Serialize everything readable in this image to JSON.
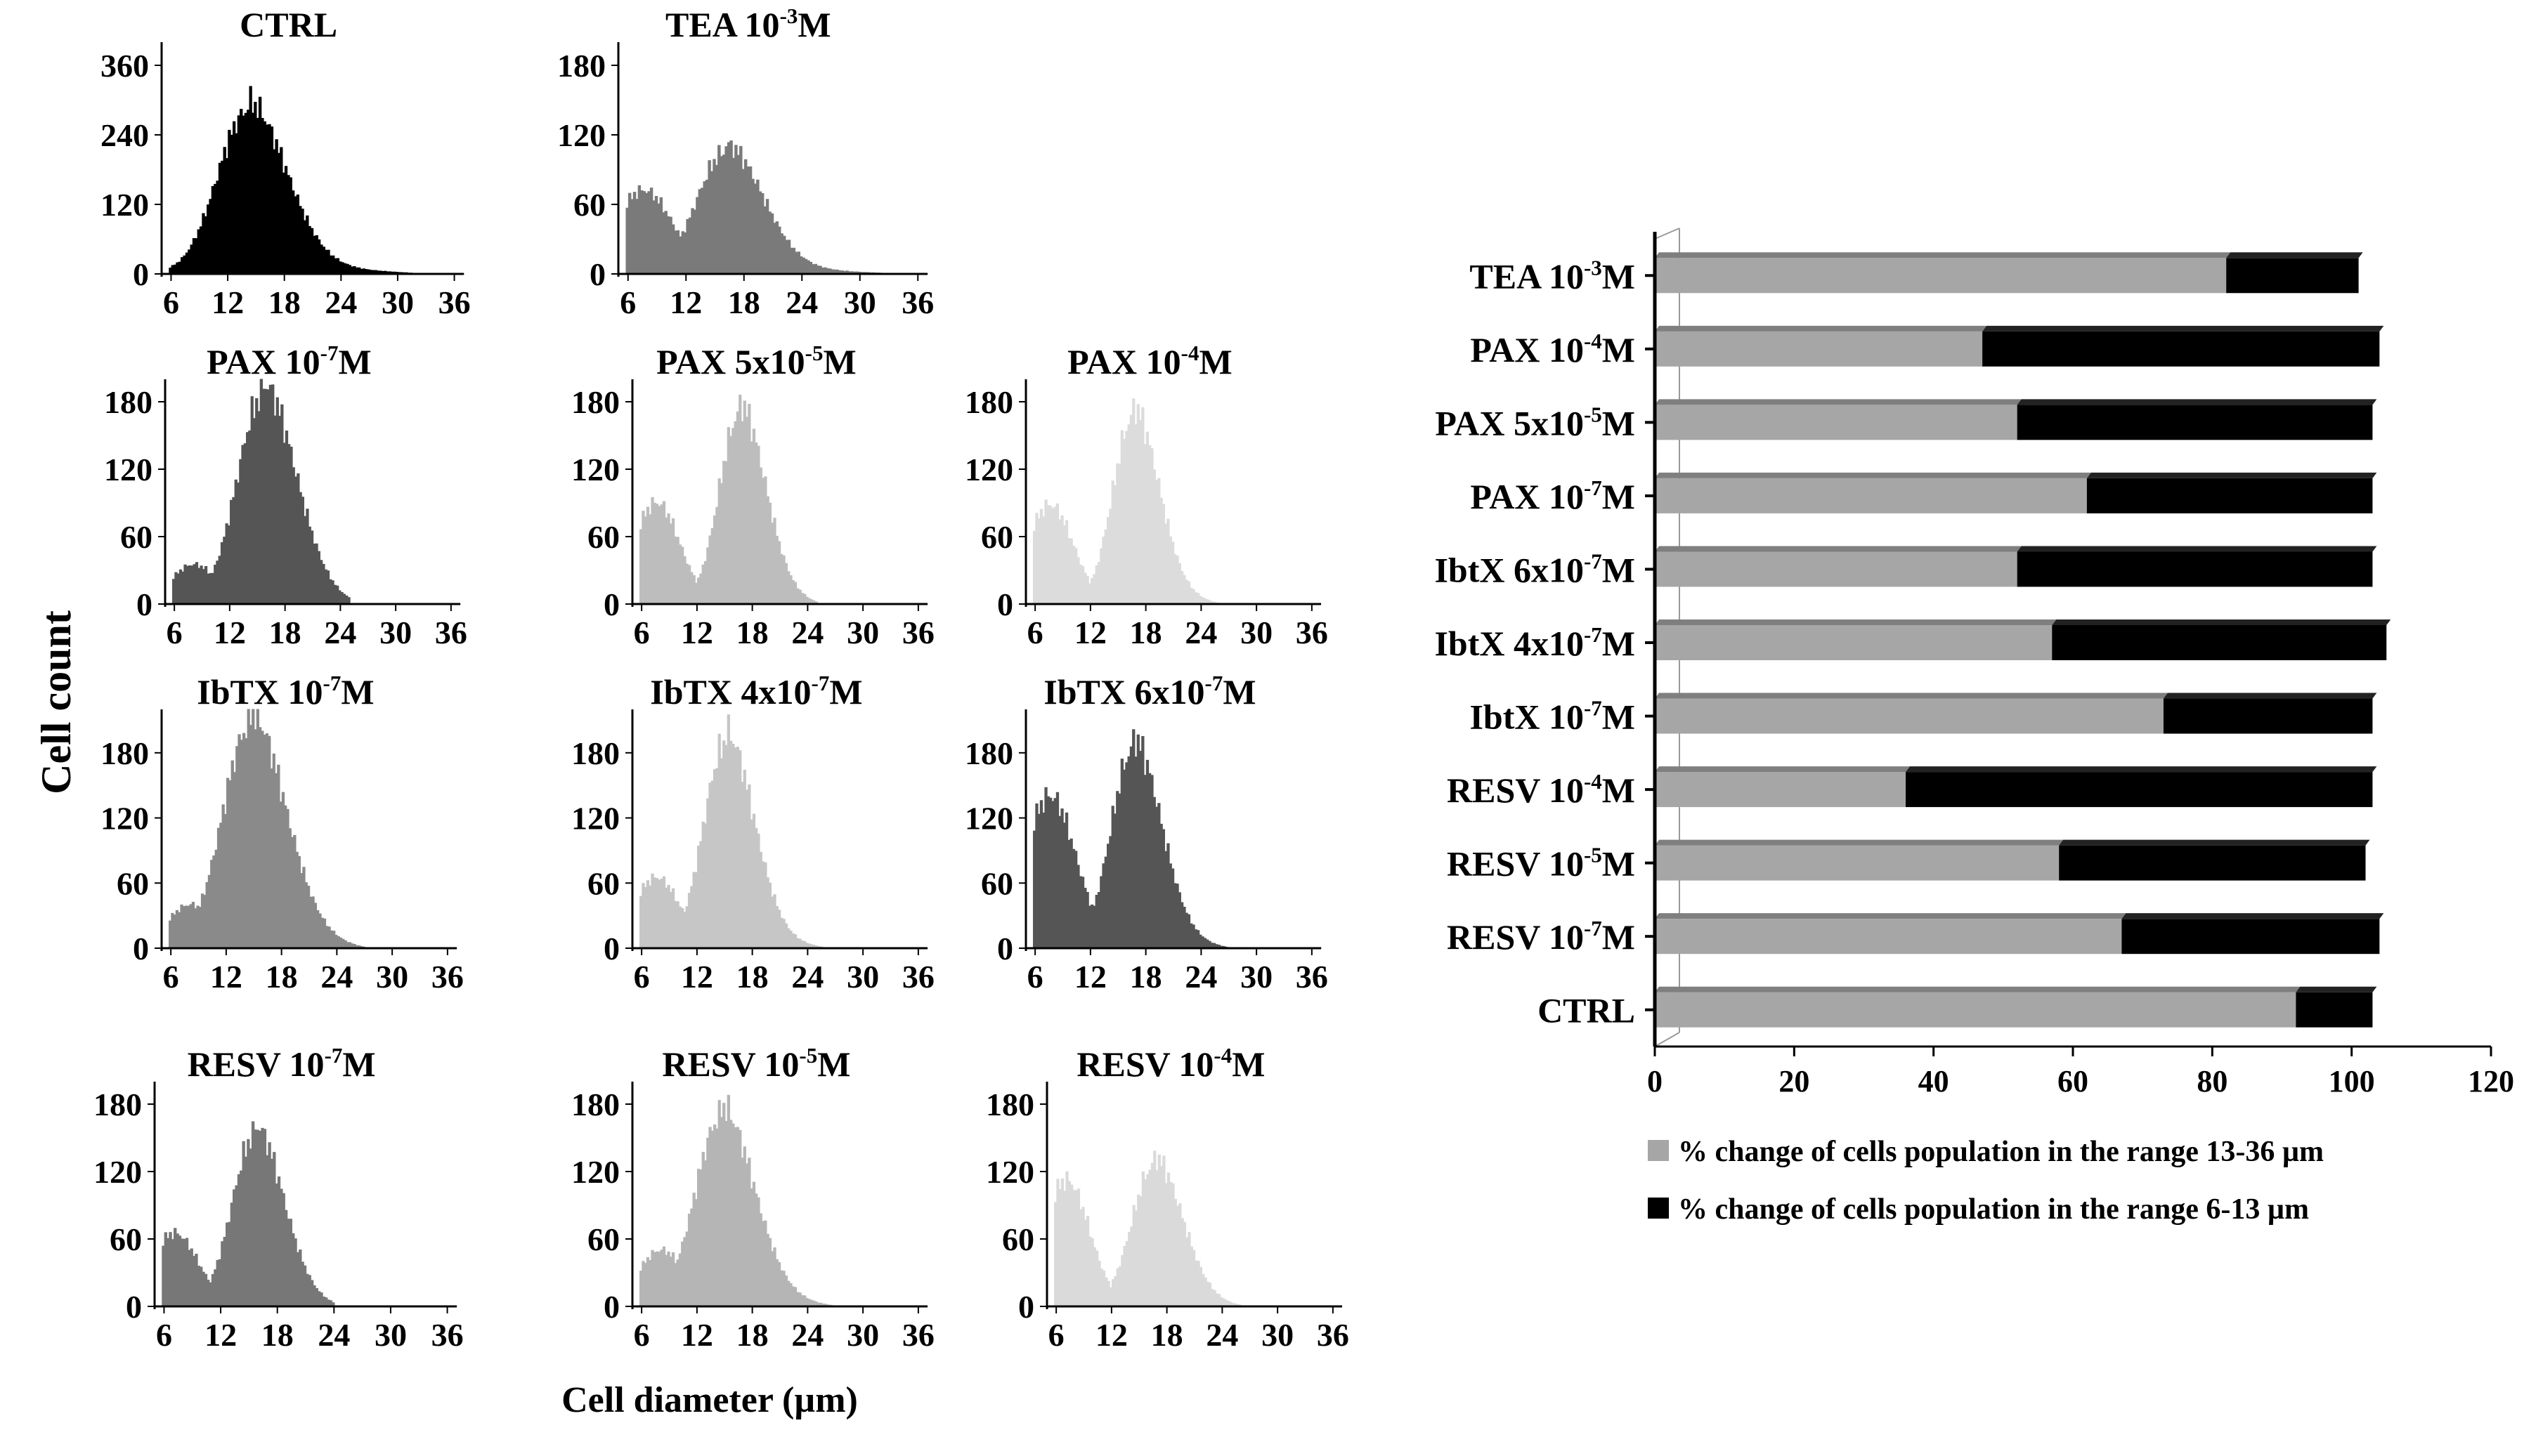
{
  "figure": {
    "ylabel": "Cell count",
    "xlabel": "Cell diameter (µm)"
  },
  "chart_data": [
    {
      "type": "histogram",
      "panel": "CTRL",
      "title_main": "CTRL",
      "title_sup": "",
      "title_tail": "",
      "color": "#000000",
      "xticks": [
        6,
        12,
        18,
        24,
        30,
        36
      ],
      "yticks": [
        0,
        120,
        240,
        360
      ],
      "xlim": [
        5,
        37
      ],
      "ylim": [
        0,
        400
      ],
      "profile": {
        "base": 0,
        "low": 40,
        "low_center": 9,
        "low_width": 2.0,
        "peak": 280,
        "peak_center": 14,
        "peak_width": 3.2,
        "tail_end": 33
      }
    },
    {
      "type": "histogram",
      "panel": "TEA 10-3M",
      "title_main": "TEA 10",
      "title_sup": "-3",
      "title_tail": "M",
      "color": "#7a7a7a",
      "xticks": [
        6,
        12,
        18,
        24,
        30,
        36
      ],
      "yticks": [
        0,
        60,
        120,
        180
      ],
      "xlim": [
        5,
        37
      ],
      "ylim": [
        0,
        200
      ],
      "profile": {
        "base": 0,
        "low": 72,
        "low_center": 7.5,
        "low_width": 3.0,
        "peak": 105,
        "peak_center": 16,
        "peak_width": 3.0,
        "tail_end": 34
      }
    },
    {
      "type": "histogram",
      "panel": "PAX 10-7M",
      "title_main": "PAX 10",
      "title_sup": "-7",
      "title_tail": "M",
      "color": "#555555",
      "xticks": [
        6,
        12,
        18,
        24,
        30,
        36
      ],
      "yticks": [
        0,
        60,
        120,
        180
      ],
      "xlim": [
        5,
        37
      ],
      "ylim": [
        0,
        200
      ],
      "profile": {
        "base": 0,
        "low": 35,
        "low_center": 8,
        "low_width": 2.5,
        "peak": 185,
        "peak_center": 15.5,
        "peak_width": 2.8,
        "tail_end": 25
      }
    },
    {
      "type": "histogram",
      "panel": "PAX 5x10-5M",
      "title_main": "PAX 5x10",
      "title_sup": "-5",
      "title_tail": "M",
      "color": "#bdbdbd",
      "xticks": [
        6,
        12,
        18,
        24,
        30,
        36
      ],
      "yticks": [
        0,
        60,
        120,
        180
      ],
      "xlim": [
        5,
        37
      ],
      "ylim": [
        0,
        200
      ],
      "profile": {
        "base": 0,
        "low": 90,
        "low_center": 7.5,
        "low_width": 2.5,
        "peak": 168,
        "peak_center": 16.5,
        "peak_width": 2.2,
        "tail_end": 25
      }
    },
    {
      "type": "histogram",
      "panel": "PAX 10-4M",
      "title_main": "PAX 10",
      "title_sup": "-4",
      "title_tail": "M",
      "color": "#dcdcdc",
      "xticks": [
        6,
        12,
        18,
        24,
        30,
        36
      ],
      "yticks": [
        0,
        60,
        120,
        180
      ],
      "xlim": [
        5,
        37
      ],
      "ylim": [
        0,
        200
      ],
      "profile": {
        "base": 0,
        "low": 88,
        "low_center": 7.5,
        "low_width": 2.5,
        "peak": 165,
        "peak_center": 16.5,
        "peak_width": 2.2,
        "tail_end": 26
      }
    },
    {
      "type": "histogram",
      "panel": "IbTX 10-7M",
      "title_main": "IbTX 10",
      "title_sup": "-7",
      "title_tail": "M",
      "color": "#8a8a8a",
      "xticks": [
        6,
        12,
        18,
        24,
        30,
        36
      ],
      "yticks": [
        0,
        60,
        120,
        180
      ],
      "xlim": [
        5,
        37
      ],
      "ylim": [
        0,
        220
      ],
      "profile": {
        "base": 0,
        "low": 40,
        "low_center": 8,
        "low_width": 2.5,
        "peak": 205,
        "peak_center": 14.5,
        "peak_width": 3.0,
        "tail_end": 27
      }
    },
    {
      "type": "histogram",
      "panel": "IbTX 4x10-7M",
      "title_main": "IbTX 4x10",
      "title_sup": "-7",
      "title_tail": "M",
      "color": "#c6c6c6",
      "xticks": [
        6,
        12,
        18,
        24,
        30,
        36
      ],
      "yticks": [
        0,
        60,
        120,
        180
      ],
      "xlim": [
        5,
        37
      ],
      "ylim": [
        0,
        220
      ],
      "profile": {
        "base": 0,
        "low": 65,
        "low_center": 7.5,
        "low_width": 2.5,
        "peak": 188,
        "peak_center": 15,
        "peak_width": 2.4,
        "tail_end": 26
      }
    },
    {
      "type": "histogram",
      "panel": "IbTX 6x10-7M",
      "title_main": "IbTX 6x10",
      "title_sup": "-7",
      "title_tail": "M",
      "color": "#555555",
      "xticks": [
        6,
        12,
        18,
        24,
        30,
        36
      ],
      "yticks": [
        0,
        60,
        120,
        180
      ],
      "xlim": [
        5,
        37
      ],
      "ylim": [
        0,
        220
      ],
      "profile": {
        "base": 0,
        "low": 140,
        "low_center": 7.5,
        "low_width": 2.8,
        "peak": 182,
        "peak_center": 16.5,
        "peak_width": 2.4,
        "tail_end": 27
      }
    },
    {
      "type": "histogram",
      "panel": "RESV 10-7M",
      "title_main": "RESV 10",
      "title_sup": "-7",
      "title_tail": "M",
      "color": "#777777",
      "xticks": [
        6,
        12,
        18,
        24,
        30,
        36
      ],
      "yticks": [
        0,
        60,
        120,
        180
      ],
      "xlim": [
        5,
        37
      ],
      "ylim": [
        0,
        200
      ],
      "profile": {
        "base": 0,
        "low": 65,
        "low_center": 7,
        "low_width": 2.5,
        "peak": 152,
        "peak_center": 15.5,
        "peak_width": 2.4,
        "tail_end": 24
      }
    },
    {
      "type": "histogram",
      "panel": "RESV 10-5M",
      "title_main": "RESV 10",
      "title_sup": "-5",
      "title_tail": "M",
      "color": "#b5b5b5",
      "xticks": [
        6,
        12,
        18,
        24,
        30,
        36
      ],
      "yticks": [
        0,
        60,
        120,
        180
      ],
      "xlim": [
        5,
        37
      ],
      "ylim": [
        0,
        200
      ],
      "profile": {
        "base": 0,
        "low": 50,
        "low_center": 8,
        "low_width": 2.5,
        "peak": 168,
        "peak_center": 14.5,
        "peak_width": 2.8,
        "tail_end": 27
      }
    },
    {
      "type": "histogram",
      "panel": "RESV 10-4M",
      "title_main": "RESV 10",
      "title_sup": "-4",
      "title_tail": "M",
      "color": "#dadada",
      "xticks": [
        6,
        12,
        18,
        24,
        30,
        36
      ],
      "yticks": [
        0,
        60,
        120,
        180
      ],
      "xlim": [
        5,
        37
      ],
      "ylim": [
        0,
        200
      ],
      "profile": {
        "base": 0,
        "low": 112,
        "low_center": 7,
        "low_width": 2.5,
        "peak": 125,
        "peak_center": 16.5,
        "peak_width": 2.4,
        "tail_end": 26
      }
    },
    {
      "type": "bar",
      "orientation": "horizontal",
      "stacked": true,
      "categories": [
        {
          "main": "TEA 10",
          "sup": "-3",
          "tail": "M"
        },
        {
          "main": "PAX 10",
          "sup": "-4",
          "tail": "M"
        },
        {
          "main": "PAX  5x10",
          "sup": "-5",
          "tail": "M"
        },
        {
          "main": "PAX 10",
          "sup": "-7",
          "tail": "M"
        },
        {
          "main": "IbtX 6x10",
          "sup": "-7",
          "tail": "M"
        },
        {
          "main": "IbtX 4x10",
          "sup": "-7",
          "tail": "M"
        },
        {
          "main": "IbtX 10",
          "sup": "-7",
          "tail": "M"
        },
        {
          "main": "RESV 10",
          "sup": "-4",
          "tail": "M"
        },
        {
          "main": "RESV 10",
          "sup": "-5",
          "tail": "M"
        },
        {
          "main": "RESV 10",
          "sup": "-7",
          "tail": "M"
        },
        {
          "main": "CTRL",
          "sup": "",
          "tail": ""
        }
      ],
      "series": [
        {
          "name": "% change of cells population  in the range 13-36 µm",
          "color": "#a6a6a6",
          "values": [
            82,
            47,
            52,
            62,
            52,
            57,
            73,
            36,
            58,
            67,
            92
          ]
        },
        {
          "name": "% change of cells population  in the  range 6-13 µm",
          "color": "#000000",
          "values": [
            19,
            57,
            51,
            41,
            51,
            48,
            30,
            67,
            44,
            37,
            11
          ]
        }
      ],
      "xticks": [
        0,
        20,
        40,
        60,
        80,
        100,
        120
      ],
      "xlim": [
        0,
        120
      ],
      "legend_position": "bottom"
    }
  ]
}
